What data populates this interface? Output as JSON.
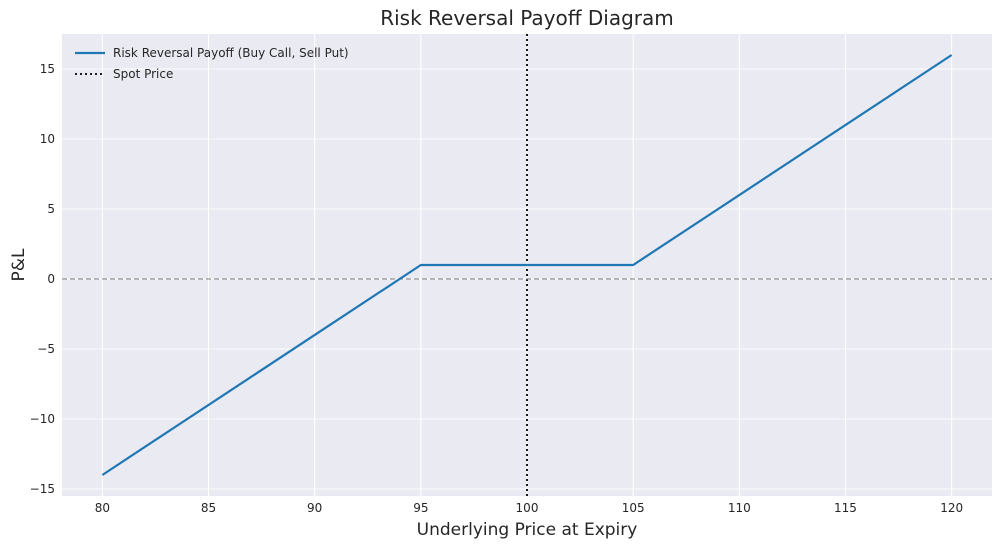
{
  "chart_data": {
    "type": "line",
    "title": "Risk Reversal Payoff Diagram",
    "xlabel": "Underlying Price at Expiry",
    "ylabel": "P&L",
    "xlim": [
      78.1,
      121.9
    ],
    "ylim": [
      -15.5,
      17.5
    ],
    "xticks": [
      80,
      85,
      90,
      95,
      100,
      105,
      110,
      115,
      120
    ],
    "yticks": [
      -15,
      -10,
      -5,
      0,
      5,
      10,
      15
    ],
    "grid": true,
    "legend_position": "top-left",
    "series": [
      {
        "name": "Risk Reversal Payoff (Buy Call, Sell Put)",
        "color": "#1f77b4",
        "style": "solid",
        "x": [
          80,
          95,
          105,
          120
        ],
        "y": [
          -14,
          1,
          1,
          16
        ]
      }
    ],
    "reference_lines": [
      {
        "name": "Spot Price",
        "orientation": "vertical",
        "value": 100,
        "color": "#000000",
        "style": "dotted",
        "in_legend": true
      },
      {
        "orientation": "horizontal",
        "value": 0,
        "color": "#808080",
        "style": "dashed",
        "in_legend": false
      }
    ],
    "colors": {
      "plot_background": "#eaeaf2",
      "grid": "#ffffff"
    }
  }
}
